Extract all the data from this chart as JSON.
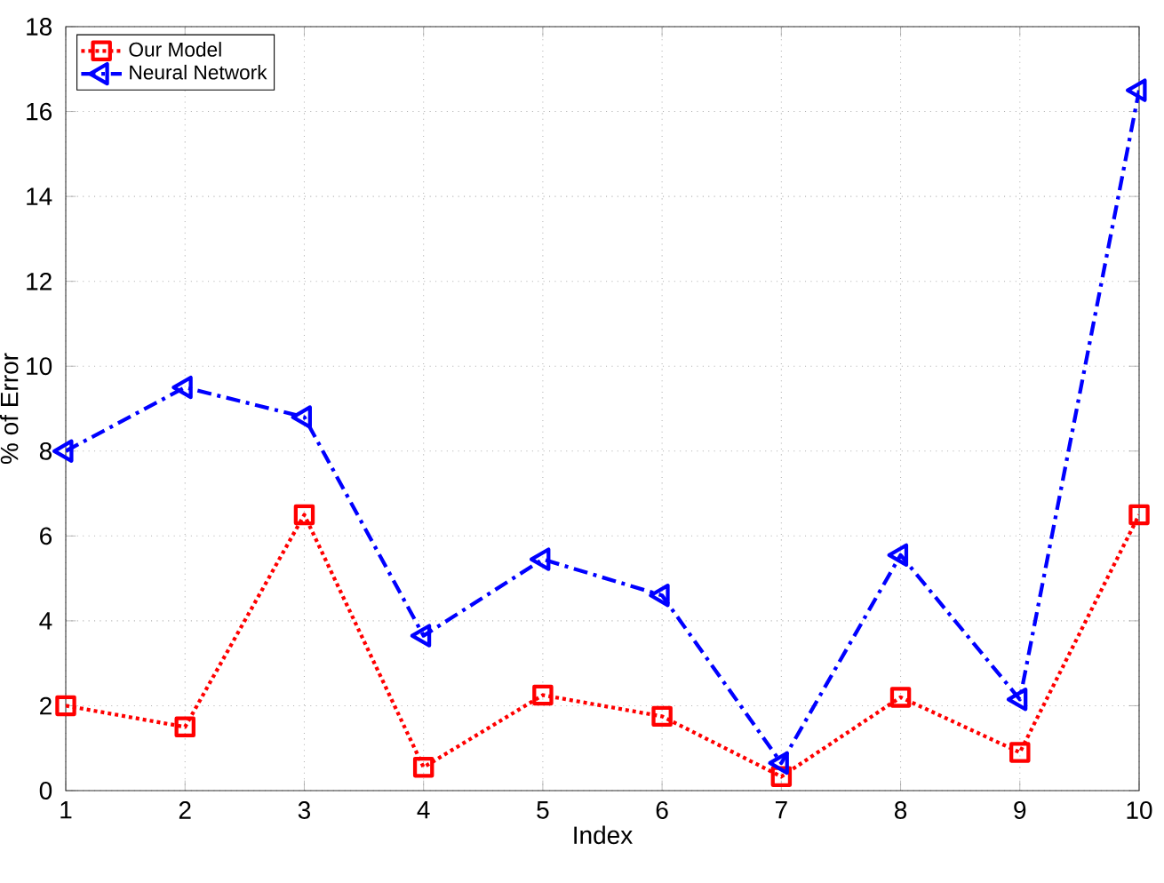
{
  "chart_data": {
    "type": "line",
    "xlabel": "Index",
    "ylabel": "% of Error",
    "x": [
      1,
      2,
      3,
      4,
      5,
      6,
      7,
      8,
      9,
      10
    ],
    "series": [
      {
        "name": "Our Model",
        "color": "#ff0000",
        "marker": "square",
        "line_style": "dotted",
        "values": [
          2.0,
          1.5,
          6.5,
          0.55,
          2.25,
          1.75,
          0.33,
          2.2,
          0.9,
          6.5
        ]
      },
      {
        "name": "Neural Network",
        "color": "#0000ff",
        "marker": "triangle",
        "line_style": "dashed",
        "values": [
          8.0,
          9.5,
          8.8,
          3.65,
          5.45,
          4.6,
          0.65,
          5.55,
          2.15,
          16.5
        ]
      }
    ],
    "xlim": [
      1,
      10
    ],
    "xticks": [
      1,
      2,
      3,
      4,
      5,
      6,
      7,
      8,
      9,
      10
    ],
    "ylim": [
      0,
      18
    ],
    "yticks": [
      0,
      2,
      4,
      6,
      8,
      10,
      12,
      14,
      16,
      18
    ],
    "grid": true,
    "legend": "top left"
  }
}
